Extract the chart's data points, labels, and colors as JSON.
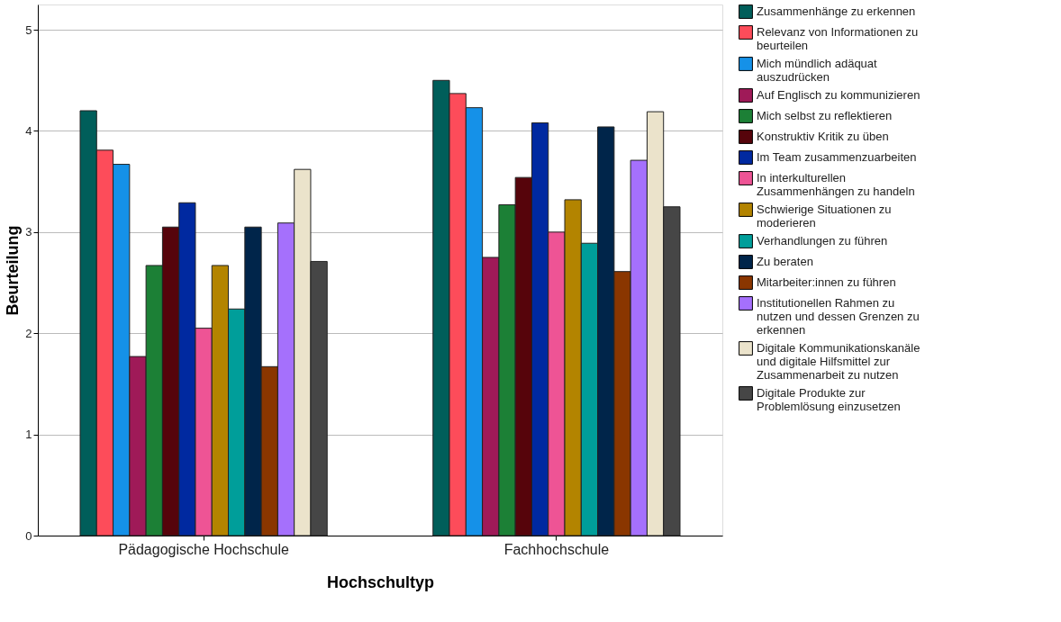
{
  "chart_data": {
    "type": "bar",
    "xlabel": "Hochschultyp",
    "ylabel": "Beurteilung",
    "categories": [
      "Pädagogische Hochschule",
      "Fachhochschule"
    ],
    "ylim": [
      0,
      5.25
    ],
    "yticks": [
      0,
      1,
      2,
      3,
      4,
      5
    ],
    "grid": "y",
    "legend": "right",
    "series": [
      {
        "name": "Zusammenhänge zu erkennen",
        "color": "#005e5a",
        "values": [
          4.2,
          4.5
        ]
      },
      {
        "name": "Relevanz von Informationen zu beurteilen",
        "color": "#fd4c5a",
        "values": [
          3.81,
          4.37
        ]
      },
      {
        "name": "Mich mündlich adäquat auszudrücken",
        "color": "#1591e8",
        "values": [
          3.67,
          4.23
        ]
      },
      {
        "name": "Auf Englisch zu kommunizieren",
        "color": "#9f1a58",
        "values": [
          1.77,
          2.75
        ]
      },
      {
        "name": "Mich selbst zu reflektieren",
        "color": "#1c8036",
        "values": [
          2.67,
          3.27
        ]
      },
      {
        "name": "Konstruktiv Kritik zu üben",
        "color": "#56040b",
        "values": [
          3.05,
          3.54
        ]
      },
      {
        "name": "Im Team zusammenzuarbeiten",
        "color": "#0029a0",
        "values": [
          3.29,
          4.08
        ]
      },
      {
        "name": "In interkulturellen Zusammenhängen zu handeln",
        "color": "#ee5495",
        "values": [
          2.05,
          3.0
        ]
      },
      {
        "name": "Schwierige Situationen zu moderieren",
        "color": "#b38400",
        "values": [
          2.67,
          3.32
        ]
      },
      {
        "name": "Verhandlungen zu führen",
        "color": "#009e9a",
        "values": [
          2.24,
          2.89
        ]
      },
      {
        "name": "Zu beraten",
        "color": "#00254a",
        "values": [
          3.05,
          4.04
        ]
      },
      {
        "name": "Mitarbeiter:innen zu führen",
        "color": "#8a3600",
        "values": [
          1.67,
          2.61
        ]
      },
      {
        "name": "Institutionellen Rahmen zu nutzen und dessen Grenzen zu erkennen",
        "color": "#a570fc",
        "values": [
          3.09,
          3.71
        ]
      },
      {
        "name": "Digitale Kommunikationskanäle und digitale Hilfsmittel zur Zusammenarbeit zu nutzen",
        "color": "#ebe3cb",
        "values": [
          3.62,
          4.19
        ]
      },
      {
        "name": "Digitale Produkte zur Problemlösung einzusetzen",
        "color": "#464646",
        "values": [
          2.71,
          3.25
        ]
      }
    ]
  }
}
